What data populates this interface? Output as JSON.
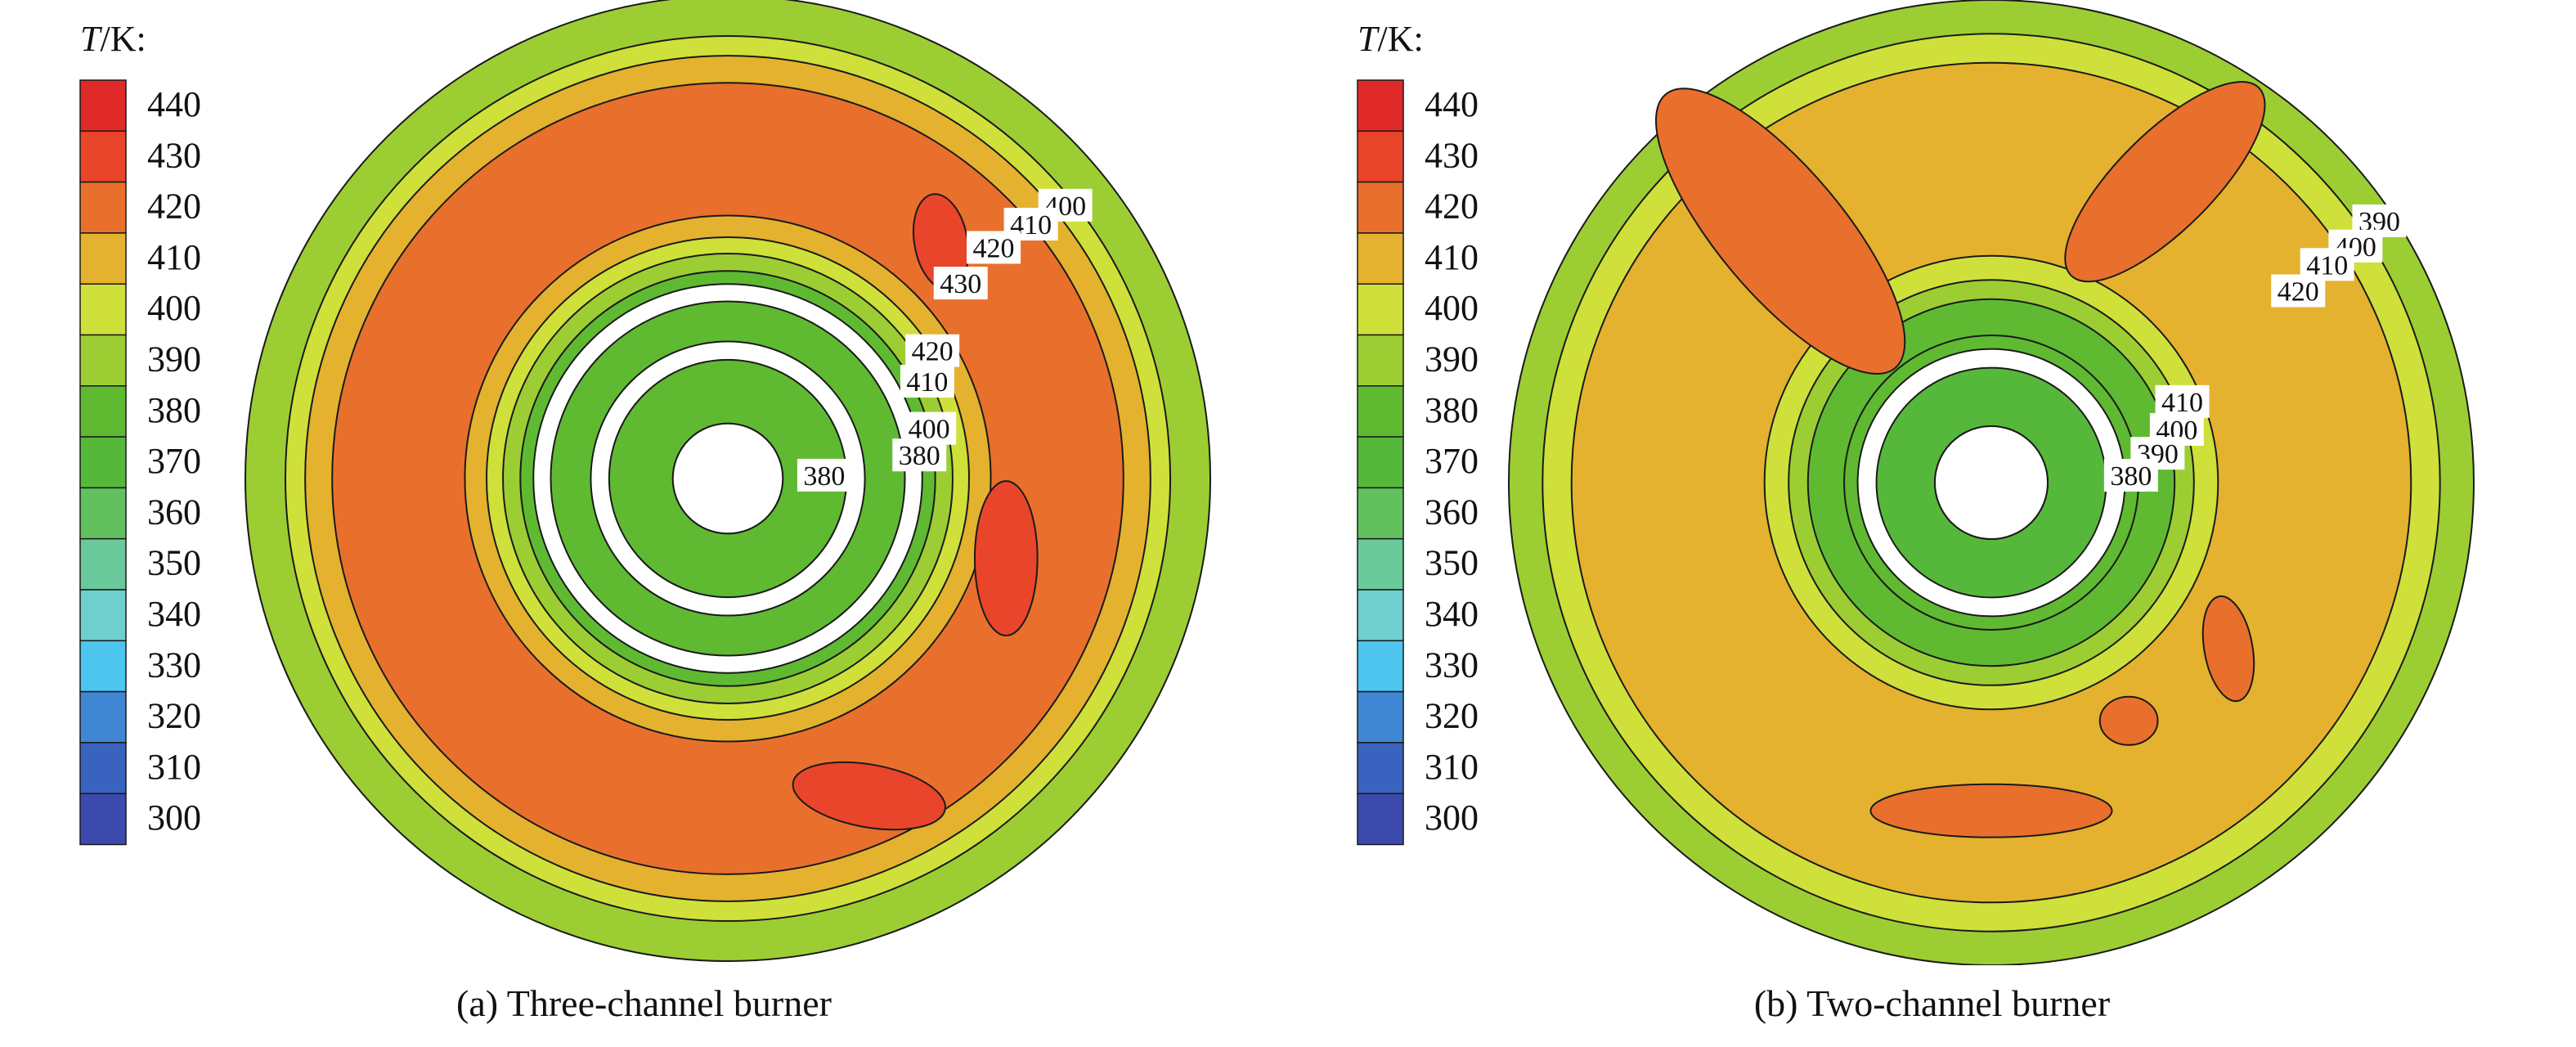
{
  "chart_data": [
    {
      "type": "heatmap",
      "subtype": "polar-contour",
      "caption": "(a) Three-channel burner",
      "colorbar": {
        "title_var": "T",
        "title_unit": "/K:",
        "ticks": [
          440,
          430,
          420,
          410,
          400,
          390,
          380,
          370,
          360,
          350,
          340,
          330,
          320,
          310,
          300
        ],
        "colors": [
          "#e02a2a",
          "#e8452a",
          "#e8702c",
          "#e4b22e",
          "#cfe03b",
          "#9cce34",
          "#5fba32",
          "#56b83a",
          "#62c05e",
          "#6ac99a",
          "#6fcfcf",
          "#4dc5ef",
          "#3f87d2",
          "#3a63bf",
          "#3c4aae"
        ]
      },
      "holes": [
        {
          "r_inner": 0.0,
          "r_outer": 0.114
        },
        {
          "r_inner": 0.246,
          "r_outer": 0.284
        },
        {
          "r_inner": 0.367,
          "r_outer": 0.403
        }
      ],
      "rings": [
        {
          "r_inner": 0.114,
          "r_outer": 0.246,
          "T": 385
        },
        {
          "r_inner": 0.284,
          "r_outer": 0.367,
          "T": 385
        },
        {
          "r_inner": 0.403,
          "r_outer": 0.43,
          "T": 388
        },
        {
          "r_inner": 0.43,
          "r_outer": 0.466,
          "T": 395
        },
        {
          "r_inner": 0.466,
          "r_outer": 0.5,
          "T": 402
        },
        {
          "r_inner": 0.5,
          "r_outer": 0.545,
          "T": 412
        },
        {
          "r_inner": 0.545,
          "r_outer": 0.82,
          "T": 425
        },
        {
          "r_inner": 0.82,
          "r_outer": 0.876,
          "T": 415
        },
        {
          "r_inner": 0.876,
          "r_outer": 0.917,
          "T": 405
        },
        {
          "r_inner": 0.917,
          "r_outer": 1.0,
          "T": 395
        }
      ],
      "hot_spots": [
        {
          "angle_deg": 48,
          "r": 0.66,
          "w": 0.11,
          "h": 0.2,
          "rot_deg": 10,
          "T": 435
        },
        {
          "angle_deg": -16,
          "r": 0.6,
          "w": 0.13,
          "h": 0.32,
          "rot_deg": 0,
          "T": 435
        },
        {
          "angle_deg": -66,
          "r": 0.72,
          "w": 0.32,
          "h": 0.13,
          "rot_deg": -10,
          "T": 435
        }
      ],
      "contour_labels": [
        {
          "text": "400",
          "angle_deg": 39.0,
          "r": 0.9
        },
        {
          "text": "410",
          "angle_deg": 40.0,
          "r": 0.82
        },
        {
          "text": "420",
          "angle_deg": 41.0,
          "r": 0.73
        },
        {
          "text": "430",
          "angle_deg": 40.0,
          "r": 0.63
        },
        {
          "text": "420",
          "angle_deg": 32.0,
          "r": 0.5
        },
        {
          "text": "410",
          "angle_deg": 26.0,
          "r": 0.46
        },
        {
          "text": "400",
          "angle_deg": 14.0,
          "r": 0.43
        },
        {
          "text": "380",
          "angle_deg": 7.0,
          "r": 0.4
        },
        {
          "text": "380",
          "angle_deg": 2.0,
          "r": 0.2
        }
      ]
    },
    {
      "type": "heatmap",
      "subtype": "polar-contour",
      "caption": "(b) Two-channel burner",
      "colorbar": {
        "title_var": "T",
        "title_unit": "/K:",
        "ticks": [
          440,
          430,
          420,
          410,
          400,
          390,
          380,
          370,
          360,
          350,
          340,
          330,
          320,
          310,
          300
        ],
        "colors": [
          "#e02a2a",
          "#e8452a",
          "#e8702c",
          "#e4b22e",
          "#cfe03b",
          "#9cce34",
          "#5fba32",
          "#56b83a",
          "#62c05e",
          "#6ac99a",
          "#6fcfcf",
          "#4dc5ef",
          "#3f87d2",
          "#3a63bf",
          "#3c4aae"
        ]
      },
      "holes": [
        {
          "r_inner": 0.0,
          "r_outer": 0.117
        },
        {
          "r_inner": 0.238,
          "r_outer": 0.277
        }
      ],
      "rings": [
        {
          "r_inner": 0.117,
          "r_outer": 0.238,
          "T": 378
        },
        {
          "r_inner": 0.277,
          "r_outer": 0.305,
          "T": 380
        },
        {
          "r_inner": 0.305,
          "r_outer": 0.38,
          "T": 385
        },
        {
          "r_inner": 0.38,
          "r_outer": 0.42,
          "T": 395
        },
        {
          "r_inner": 0.42,
          "r_outer": 0.47,
          "T": 405
        },
        {
          "r_inner": 0.47,
          "r_outer": 0.87,
          "T": 415
        },
        {
          "r_inner": 0.87,
          "r_outer": 0.93,
          "T": 402
        },
        {
          "r_inner": 0.93,
          "r_outer": 1.0,
          "T": 392
        }
      ],
      "hot_spots": [
        {
          "angle_deg": 130,
          "r": 0.68,
          "w": 0.26,
          "h": 0.74,
          "rot_deg": 40,
          "T": 425
        },
        {
          "angle_deg": 60,
          "r": 0.72,
          "w": 0.2,
          "h": 0.55,
          "rot_deg": -45,
          "T": 425
        },
        {
          "angle_deg": -35,
          "r": 0.6,
          "w": 0.1,
          "h": 0.22,
          "rot_deg": 10,
          "T": 425
        },
        {
          "angle_deg": -60,
          "r": 0.57,
          "w": 0.12,
          "h": 0.1,
          "rot_deg": 0,
          "T": 425
        },
        {
          "angle_deg": -90,
          "r": 0.68,
          "w": 0.5,
          "h": 0.11,
          "rot_deg": 0,
          "T": 425
        }
      ],
      "contour_labels": [
        {
          "text": "390",
          "angle_deg": 34.0,
          "r": 0.97
        },
        {
          "text": "400",
          "angle_deg": 33.0,
          "r": 0.9
        },
        {
          "text": "410",
          "angle_deg": 33.0,
          "r": 0.83
        },
        {
          "text": "420",
          "angle_deg": 32.0,
          "r": 0.75
        },
        {
          "text": "410",
          "angle_deg": 23.0,
          "r": 0.43
        },
        {
          "text": "400",
          "angle_deg": 16.0,
          "r": 0.4
        },
        {
          "text": "390",
          "angle_deg": 10.0,
          "r": 0.35
        },
        {
          "text": "380",
          "angle_deg": 3.0,
          "r": 0.29
        }
      ]
    }
  ]
}
